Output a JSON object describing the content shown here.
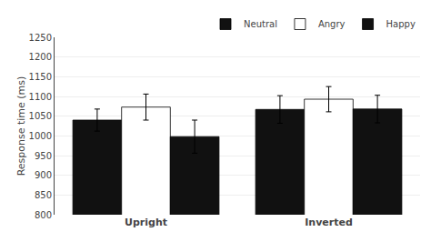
{
  "chart_data": {
    "type": "bar",
    "categories": [
      "Upright",
      "Inverted"
    ],
    "series": [
      {
        "name": "Neutral",
        "color": "#111111",
        "values": [
          1040,
          1067
        ],
        "errors": [
          28,
          35
        ]
      },
      {
        "name": "Angry",
        "color": "#ffffff",
        "values": [
          1073,
          1093
        ],
        "errors": [
          33,
          32
        ]
      },
      {
        "name": "Happy",
        "color": "#111111",
        "values": [
          998,
          1068
        ],
        "errors": [
          42,
          35
        ]
      }
    ],
    "ylabel": "Response time (ms)",
    "ylim": [
      800,
      1250
    ],
    "yticks": [
      800,
      850,
      900,
      950,
      1000,
      1050,
      1100,
      1150,
      1200,
      1250
    ],
    "grid": true,
    "legend": "upper right"
  }
}
